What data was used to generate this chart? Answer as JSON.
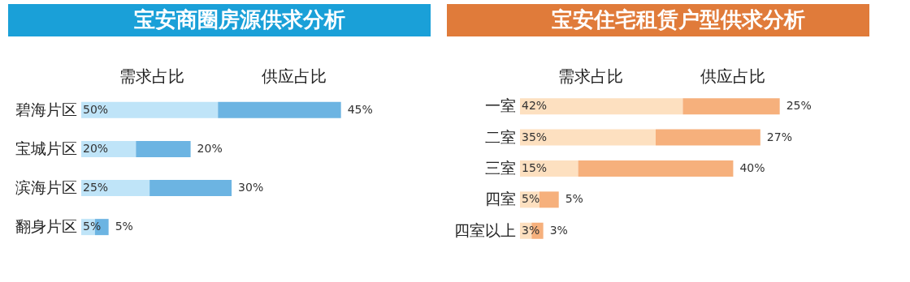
{
  "chart_data": [
    {
      "type": "bar",
      "title": "宝安商圈房源供求分析",
      "orientation": "horizontal",
      "stacked": true,
      "legend": "top",
      "categories": [
        "碧海片区",
        "宝城片区",
        "滨海片区",
        "翻身片区"
      ],
      "series": [
        {
          "name": "需求占比",
          "color": "#bfe4f8",
          "values": [
            50,
            20,
            25,
            5
          ],
          "value_labels": [
            "50%",
            "20%",
            "25%",
            "5%"
          ]
        },
        {
          "name": "供应占比",
          "color": "#6cb4e2",
          "values": [
            45,
            20,
            30,
            5
          ],
          "value_labels": [
            "45%",
            "20%",
            "30%",
            "5%"
          ]
        }
      ]
    },
    {
      "type": "bar",
      "title": "宝安住宅租赁户型供求分析",
      "orientation": "horizontal",
      "stacked": true,
      "legend": "top",
      "categories": [
        "一室",
        "二室",
        "三室",
        "四室",
        "四室以上"
      ],
      "series": [
        {
          "name": "需求占比",
          "color": "#fde0c0",
          "values": [
            42,
            35,
            15,
            5,
            3
          ],
          "value_labels": [
            "42%",
            "35%",
            "15%",
            "5%",
            "3%"
          ]
        },
        {
          "name": "供应占比",
          "color": "#f6b07c",
          "values": [
            25,
            27,
            40,
            5,
            3
          ],
          "value_labels": [
            "25%",
            "27%",
            "40%",
            "5%",
            "3%"
          ]
        }
      ]
    }
  ]
}
